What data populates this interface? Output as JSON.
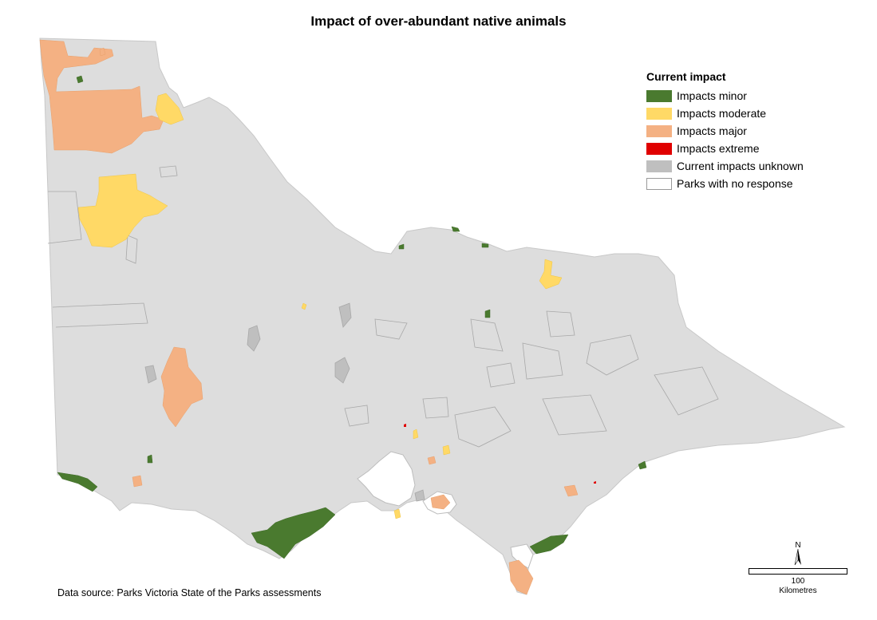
{
  "title": "Impact of over-abundant native animals",
  "legend": {
    "title": "Current impact",
    "items": [
      {
        "label": "Impacts minor",
        "color": "#4a7a2f"
      },
      {
        "label": "Impacts moderate",
        "color": "#ffd966"
      },
      {
        "label": "Impacts major",
        "color": "#f4b183"
      },
      {
        "label": "Impacts extreme",
        "color": "#e00000"
      },
      {
        "label": "Current impacts unknown",
        "color": "#bfbfbf"
      },
      {
        "label": "Parks with no response",
        "color": "#ffffff"
      }
    ]
  },
  "base_color": "#dddddd",
  "data_source": "Data source: Parks Victoria State of the Parks assessments",
  "north_label": "N",
  "scale": {
    "value": "100",
    "unit": "Kilometres"
  }
}
